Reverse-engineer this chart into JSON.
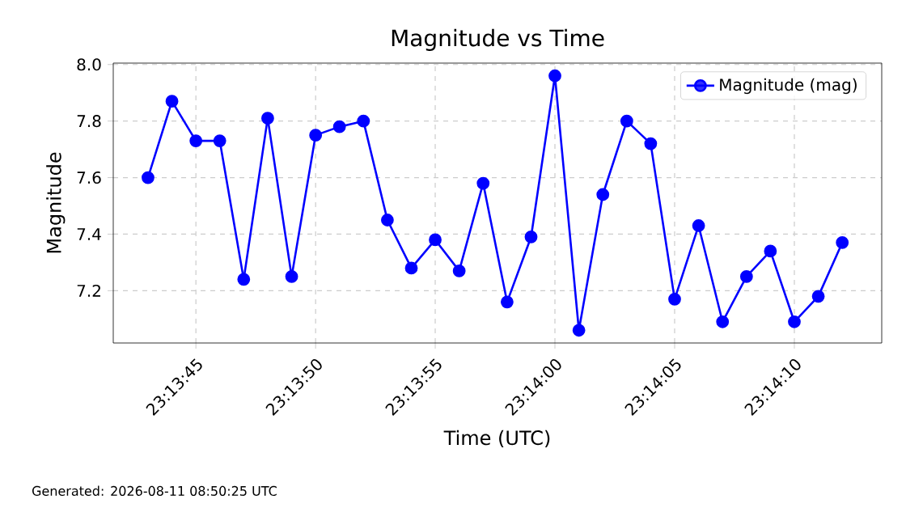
{
  "chart_data": {
    "type": "line",
    "title": "Magnitude vs Time",
    "xlabel": "Time (UTC)",
    "ylabel": "Magnitude",
    "x": [
      23.228611,
      23.228889,
      23.229167,
      23.229444,
      23.229722,
      23.23,
      23.230278,
      23.230556,
      23.230833,
      23.231111,
      23.231389,
      23.231667,
      23.231944,
      23.232222,
      23.2325,
      23.232778,
      23.233056,
      23.233333,
      23.233611,
      23.233889,
      23.234167,
      23.234444,
      23.234722,
      23.235,
      23.235278,
      23.235556,
      23.235833,
      23.236111,
      23.236389,
      23.236667
    ],
    "series": [
      {
        "name": "Magnitude (mag)",
        "color": "#0000ff",
        "values": [
          7.6,
          7.87,
          7.73,
          7.73,
          7.24,
          7.81,
          7.25,
          7.75,
          7.78,
          7.8,
          7.45,
          7.28,
          7.38,
          7.27,
          7.58,
          7.16,
          7.39,
          7.96,
          7.06,
          7.54,
          7.8,
          7.72,
          7.17,
          7.43,
          7.09,
          7.25,
          7.34,
          7.09,
          7.18,
          7.37
        ]
      }
    ],
    "xlim": [
      23.228208,
      23.237125
    ],
    "xticks": [
      {
        "value": 23.229167,
        "label": "23:13:45"
      },
      {
        "value": 23.230556,
        "label": "23:13:50"
      },
      {
        "value": 23.231944,
        "label": "23:13:55"
      },
      {
        "value": 23.233333,
        "label": "23:14:00"
      },
      {
        "value": 23.234722,
        "label": "23:14:05"
      },
      {
        "value": 23.236111,
        "label": "23:14:10"
      }
    ],
    "ylim": [
      7.015,
      8.005
    ],
    "yticks": [
      7.2,
      7.4,
      7.6,
      7.8,
      {
        "value": 8,
        "label": "8.0"
      }
    ],
    "grid": true,
    "legend": "top right",
    "marker": "circle",
    "line_style": "solid",
    "annotations": [
      "Generated: 2026-08-11 08:50:25 UTC"
    ]
  }
}
